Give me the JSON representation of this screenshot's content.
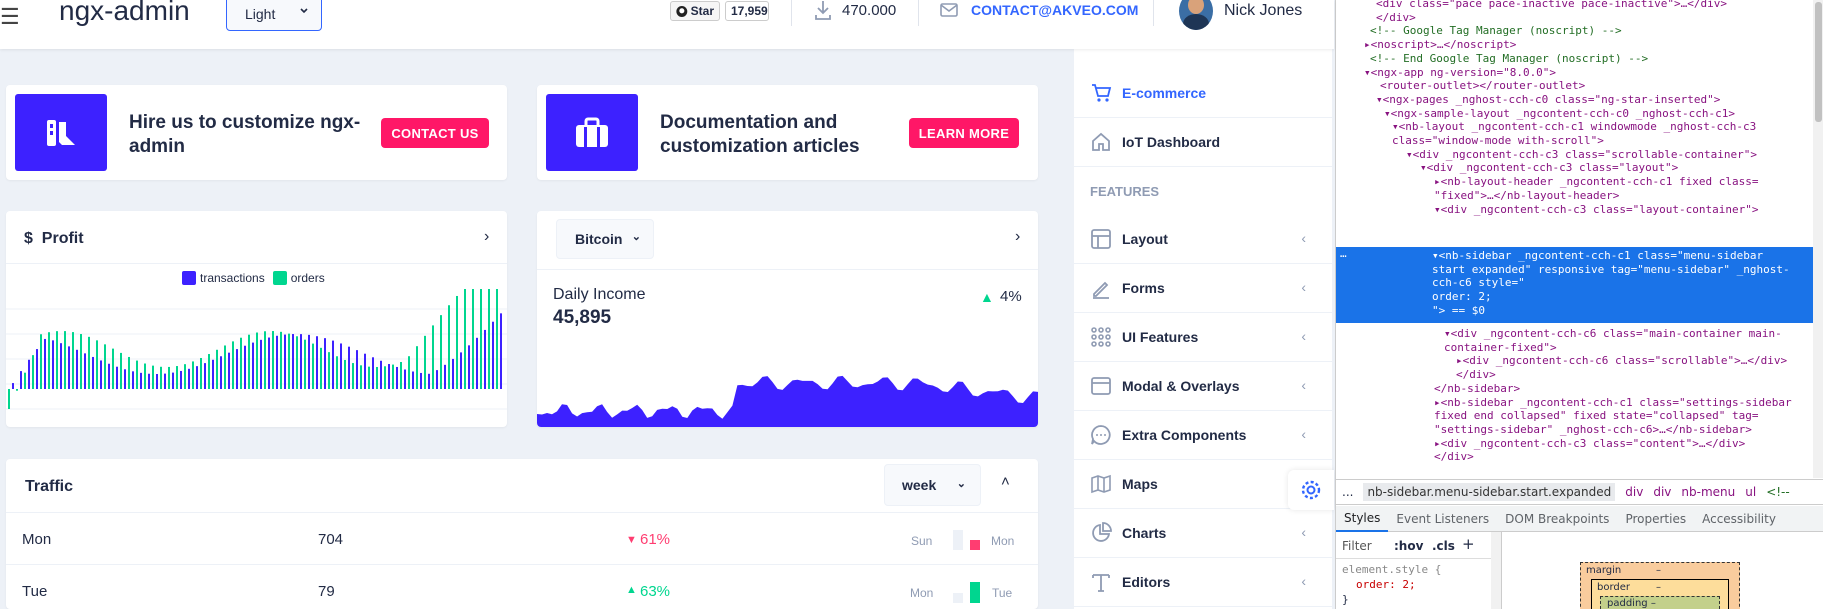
{
  "header": {
    "brand": "ngx-admin",
    "theme": "Light",
    "star_label": "Star",
    "star_count": "17,959",
    "downloads": "470.000",
    "contact": "CONTACT@AKVEO.COM",
    "user": "Nick Jones"
  },
  "promo": [
    {
      "title_line1": "Hire us to customize ngx-",
      "title_line2": "admin",
      "button": "CONTACT US"
    },
    {
      "title_line1": "Documentation and",
      "title_line2": "customization articles",
      "button": "LEARN MORE"
    }
  ],
  "profit": {
    "currency": "$",
    "title": "Profit",
    "legend": [
      "transactions",
      "orders"
    ]
  },
  "income": {
    "coin": "Bitcoin",
    "label": "Daily Income",
    "value": "45,895",
    "delta": "4%"
  },
  "traffic": {
    "title": "Traffic",
    "period": "week",
    "rows": [
      {
        "day": "Mon",
        "value": "704",
        "delta": "61%",
        "prev": "Sun",
        "cur": "Mon",
        "trend": "down"
      },
      {
        "day": "Tue",
        "value": "79",
        "delta": "63%",
        "prev": "Mon",
        "cur": "Tue",
        "trend": "up"
      }
    ]
  },
  "sidebar": {
    "items": [
      {
        "label": "E-commerce",
        "icon": "shopping-cart-icon",
        "active": true
      },
      {
        "label": "IoT Dashboard",
        "icon": "home-icon"
      },
      {
        "label": "FEATURES",
        "group": true
      },
      {
        "label": "Layout",
        "icon": "layout-icon"
      },
      {
        "label": "Forms",
        "icon": "edit-icon"
      },
      {
        "label": "UI Features",
        "icon": "grid-icon"
      },
      {
        "label": "Modal & Overlays",
        "icon": "browser-icon"
      },
      {
        "label": "Extra Components",
        "icon": "message-circle-icon"
      },
      {
        "label": "Maps",
        "icon": "map-icon"
      },
      {
        "label": "Charts",
        "icon": "pie-chart-icon"
      },
      {
        "label": "Editors",
        "icon": "text-icon"
      }
    ]
  },
  "devtools": {
    "lines": [
      "<div class=\"pace  pace-inactive pace-inactive\">…</div>",
      "</div>",
      "<!-- Google Tag Manager (noscript) -->",
      "▸<noscript>…</noscript>",
      "<!-- End Google Tag Manager (noscript) -->",
      "▾<ngx-app ng-version=\"8.0.0\">",
      "<router-outlet></router-outlet>",
      "▾<ngx-pages _nghost-cch-c0 class=\"ng-star-inserted\">",
      "▾<ngx-sample-layout _ngcontent-cch-c0 _nghost-cch-c1>",
      "▾<nb-layout _ngcontent-cch-c1 windowmode _nghost-cch-c3",
      "class=\"window-mode with-scroll\">",
      "▾<div _ngcontent-cch-c3 class=\"scrollable-container\">",
      "▾<div _ngcontent-cch-c3 class=\"layout\">",
      "▸<nb-layout-header _ngcontent-cch-c1 fixed class=",
      "\"fixed\">…</nb-layout-header>",
      "▾<div _ngcontent-cch-c3 class=\"layout-container\">"
    ],
    "selected": [
      "▾<nb-sidebar _ngcontent-cch-c1 class=\"menu-sidebar",
      "start expanded\" responsive tag=\"menu-sidebar\" _nghost-",
      "cch-c6 style=\"",
      "    order: 2;",
      "\"> == $0"
    ],
    "after": [
      "▾<div _ngcontent-cch-c6 class=\"main-container main-",
      "container-fixed\">",
      "▸<div _ngcontent-cch-c6 class=\"scrollable\">…</div>",
      "</div>",
      "</nb-sidebar>",
      "▸<nb-sidebar _ngcontent-cch-c1 class=\"settings-sidebar",
      "fixed end collapsed\" fixed state=\"collapsed\" tag=",
      "\"settings-sidebar\" _nghost-cch-c6>…</nb-sidebar>",
      "▸<div _ngcontent-cch-c3 class=\"content\">…</div>",
      "</div>"
    ],
    "breadcrumb": [
      "...",
      "nb-sidebar.menu-sidebar.start.expanded",
      "div",
      "div",
      "nb-menu",
      "ul",
      "<!--"
    ],
    "tabs": [
      "Styles",
      "Event Listeners",
      "DOM Breakpoints",
      "Properties",
      "Accessibility"
    ],
    "filter": "Filter",
    "hov": ":hov",
    "cls": ".cls",
    "style_rule": "element.style {",
    "style_prop": "order: 2;",
    "style_close": "}",
    "box": [
      "margin",
      "–",
      "border",
      "–",
      "padding –"
    ]
  }
}
